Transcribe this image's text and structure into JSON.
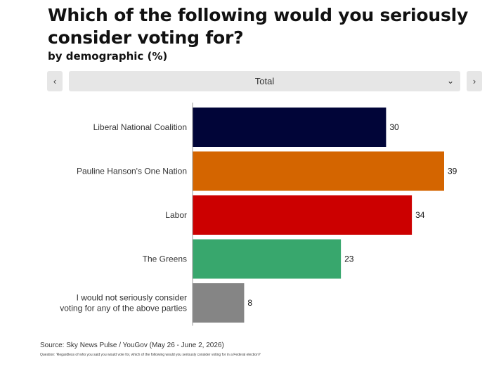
{
  "header": {
    "title": "Which of the following would you seriously consider voting for?",
    "subtitle": "by demographic (%)"
  },
  "selector": {
    "prev_icon": "chevron-left-icon",
    "prev_glyph": "‹",
    "value": "Total",
    "dropdown_icon": "chevron-down-icon",
    "dropdown_glyph": "⌄",
    "next_icon": "chevron-right-icon",
    "next_glyph": "›"
  },
  "chart_data": {
    "type": "bar",
    "orientation": "horizontal",
    "categories": [
      "Liberal National Coalition",
      "Pauline Hanson's One Nation",
      "Labor",
      "The Greens",
      "I would not seriously consider voting for any of the above parties"
    ],
    "category_lines": [
      [
        "Liberal National Coalition"
      ],
      [
        "Pauline Hanson's One Nation"
      ],
      [
        "Labor"
      ],
      [
        "The Greens"
      ],
      [
        "I would not seriously consider",
        "voting for any of the above parties"
      ]
    ],
    "values": [
      30,
      39,
      34,
      23,
      8
    ],
    "colors": [
      "#010538",
      "#d46500",
      "#cc0000",
      "#38a76d",
      "#858585"
    ],
    "xlim": [
      0,
      42
    ],
    "grid": false
  },
  "footer": {
    "source": "Source: Sky News Pulse / YouGov (May 26 - June 2, 2026)",
    "question": "Question: 'Regardless of who you said you would vote for, which of the following would you seriously consider voting for in a Federal election?"
  }
}
